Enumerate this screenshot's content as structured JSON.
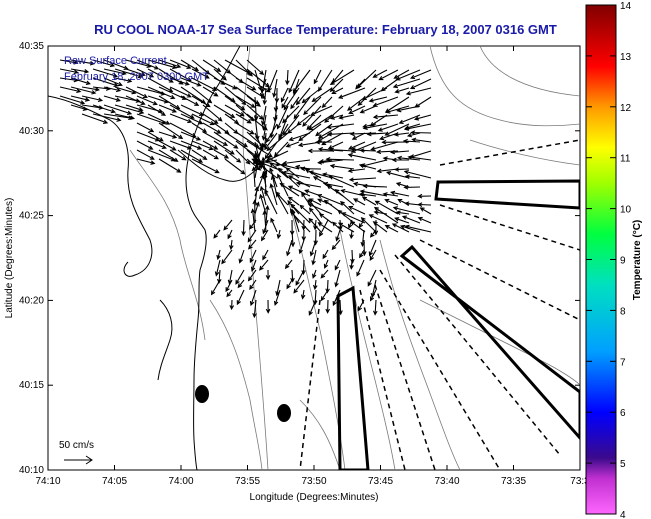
{
  "title": "RU COOL  NOAA-17  Sea Surface Temperature:  February 18, 2007 0316 GMT",
  "legend": {
    "line1": "Raw Surface Current",
    "line2": "February 18, 2007 0300 GMT"
  },
  "axes": {
    "xlabel": "Longitude (Degrees:Minutes)",
    "ylabel": "Latitude (Degrees:Minutes)",
    "x_ticks": [
      "74:10",
      "74:05",
      "74:00",
      "73:55",
      "73:50",
      "73:45",
      "73:40",
      "73:35",
      "73:3"
    ],
    "y_ticks": [
      "40:35",
      "40:30",
      "40:25",
      "40:20",
      "40:15",
      "40:10"
    ]
  },
  "scale_bar": {
    "label": "50 cm/s"
  },
  "colorbar": {
    "label": "Temperature (°C)",
    "ticks": [
      "14",
      "13",
      "12",
      "11",
      "10",
      "9",
      "8",
      "7",
      "6",
      "5",
      "4"
    ],
    "min": 4,
    "max": 14
  },
  "colors": {
    "title": "#1a1aa8",
    "legend": "#1a1aa8",
    "coast": "#000000",
    "bathymetry": "#7a7a7a"
  }
}
